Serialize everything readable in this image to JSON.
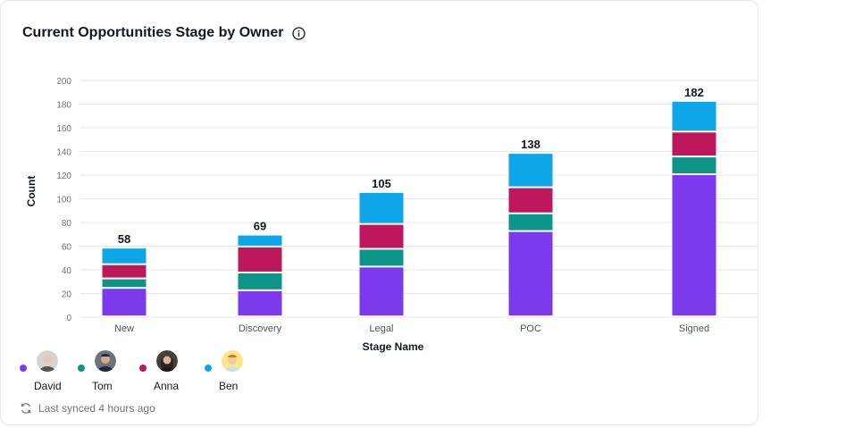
{
  "card": {
    "title": "Current Opportunities Stage by Owner",
    "info_icon": "info-circle-icon",
    "sync_text": "Last synced 4 hours ago",
    "sync_icon": "refresh-icon"
  },
  "legend": {
    "items": [
      {
        "name": "David",
        "color": "#7c3aed",
        "avatar": "avatar-photo"
      },
      {
        "name": "Tom",
        "color": "#0d9488",
        "avatar": "avatar-photo"
      },
      {
        "name": "Anna",
        "color": "#be185d",
        "avatar": "avatar-photo"
      },
      {
        "name": "Ben",
        "color": "#0ea5e9",
        "avatar": "avatar-photo"
      }
    ]
  },
  "chart_data": {
    "type": "bar",
    "stacked": true,
    "xlabel": "Stage Name",
    "ylabel": "Count",
    "ylim": [
      0,
      200
    ],
    "yticks": [
      0,
      20,
      40,
      60,
      80,
      100,
      120,
      140,
      160,
      180,
      200
    ],
    "grid": true,
    "categories": [
      "New",
      "Discovery",
      "Legal",
      "POC",
      "Signed"
    ],
    "totals": [
      58,
      69,
      105,
      138,
      182
    ],
    "series": [
      {
        "name": "David",
        "color": "#7c3aed",
        "values": [
          24,
          22,
          42,
          72,
          120
        ]
      },
      {
        "name": "Tom",
        "color": "#0d9488",
        "values": [
          8,
          15,
          15,
          15,
          15
        ]
      },
      {
        "name": "Anna",
        "color": "#be185d",
        "values": [
          12,
          22,
          21,
          22,
          21
        ]
      },
      {
        "name": "Ben",
        "color": "#0ea5e9",
        "values": [
          14,
          10,
          27,
          29,
          26
        ]
      }
    ]
  }
}
